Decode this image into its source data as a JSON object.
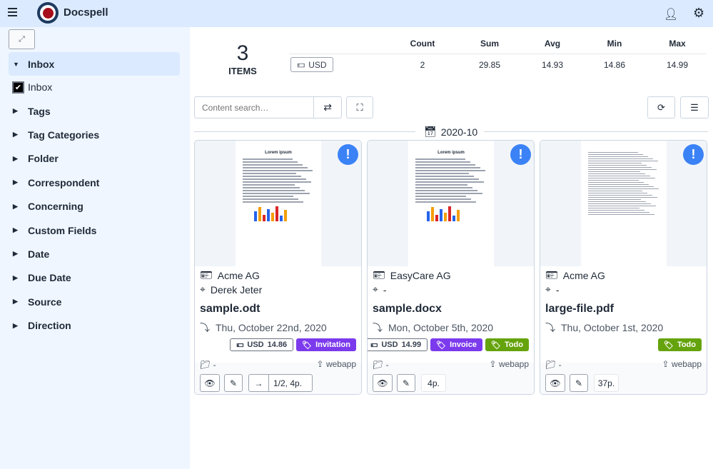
{
  "app": {
    "title": "Docspell"
  },
  "header": {
    "menu_icon": "hamburger-icon",
    "user_icon": "user-icon",
    "settings_icon": "cogs-icon"
  },
  "sidebar": {
    "inbox_header": "Inbox",
    "inbox_checkbox": {
      "label": "Inbox",
      "checked": true
    },
    "items": [
      {
        "label": "Tags"
      },
      {
        "label": "Tag Categories"
      },
      {
        "label": "Folder"
      },
      {
        "label": "Correspondent"
      },
      {
        "label": "Concerning"
      },
      {
        "label": "Custom Fields"
      },
      {
        "label": "Date"
      },
      {
        "label": "Due Date"
      },
      {
        "label": "Source"
      },
      {
        "label": "Direction"
      }
    ]
  },
  "summary": {
    "count": "3",
    "count_label": "ITEMS",
    "currency": "USD",
    "headers": [
      "Count",
      "Sum",
      "Avg",
      "Min",
      "Max"
    ],
    "values": [
      "2",
      "29.85",
      "14.93",
      "14.86",
      "14.99"
    ]
  },
  "search": {
    "placeholder": "Content search…",
    "value": ""
  },
  "group": {
    "month": "2020-10"
  },
  "cards": [
    {
      "correspondent": "Acme AG",
      "concerning": "Derek Jeter",
      "name": "sample.odt",
      "date": "Thu, October 22nd, 2020",
      "money": {
        "currency": "USD",
        "amount": "14.86"
      },
      "tags": [
        {
          "name": "Invitation",
          "color": "#7c3aed"
        }
      ],
      "folder": "-",
      "source": "webapp",
      "pages": "1/2, 4p.",
      "thumb_title": "Lorem ipsum"
    },
    {
      "correspondent": "EasyCare AG",
      "concerning": "-",
      "name": "sample.docx",
      "date": "Mon, October 5th, 2020",
      "money": {
        "currency": "USD",
        "amount": "14.99"
      },
      "tags": [
        {
          "name": "Invoice",
          "color": "#7c3aed"
        },
        {
          "name": "Todo",
          "color": "#65a30d"
        }
      ],
      "folder": "-",
      "source": "webapp",
      "pages": "4p.",
      "thumb_title": "Lorem ipsum"
    },
    {
      "correspondent": "Acme AG",
      "concerning": "-",
      "name": "large-file.pdf",
      "date": "Thu, October 1st, 2020",
      "money": null,
      "tags": [
        {
          "name": "Todo",
          "color": "#65a30d"
        }
      ],
      "folder": "-",
      "source": "webapp",
      "pages": "37p.",
      "thumb_title": ""
    }
  ]
}
